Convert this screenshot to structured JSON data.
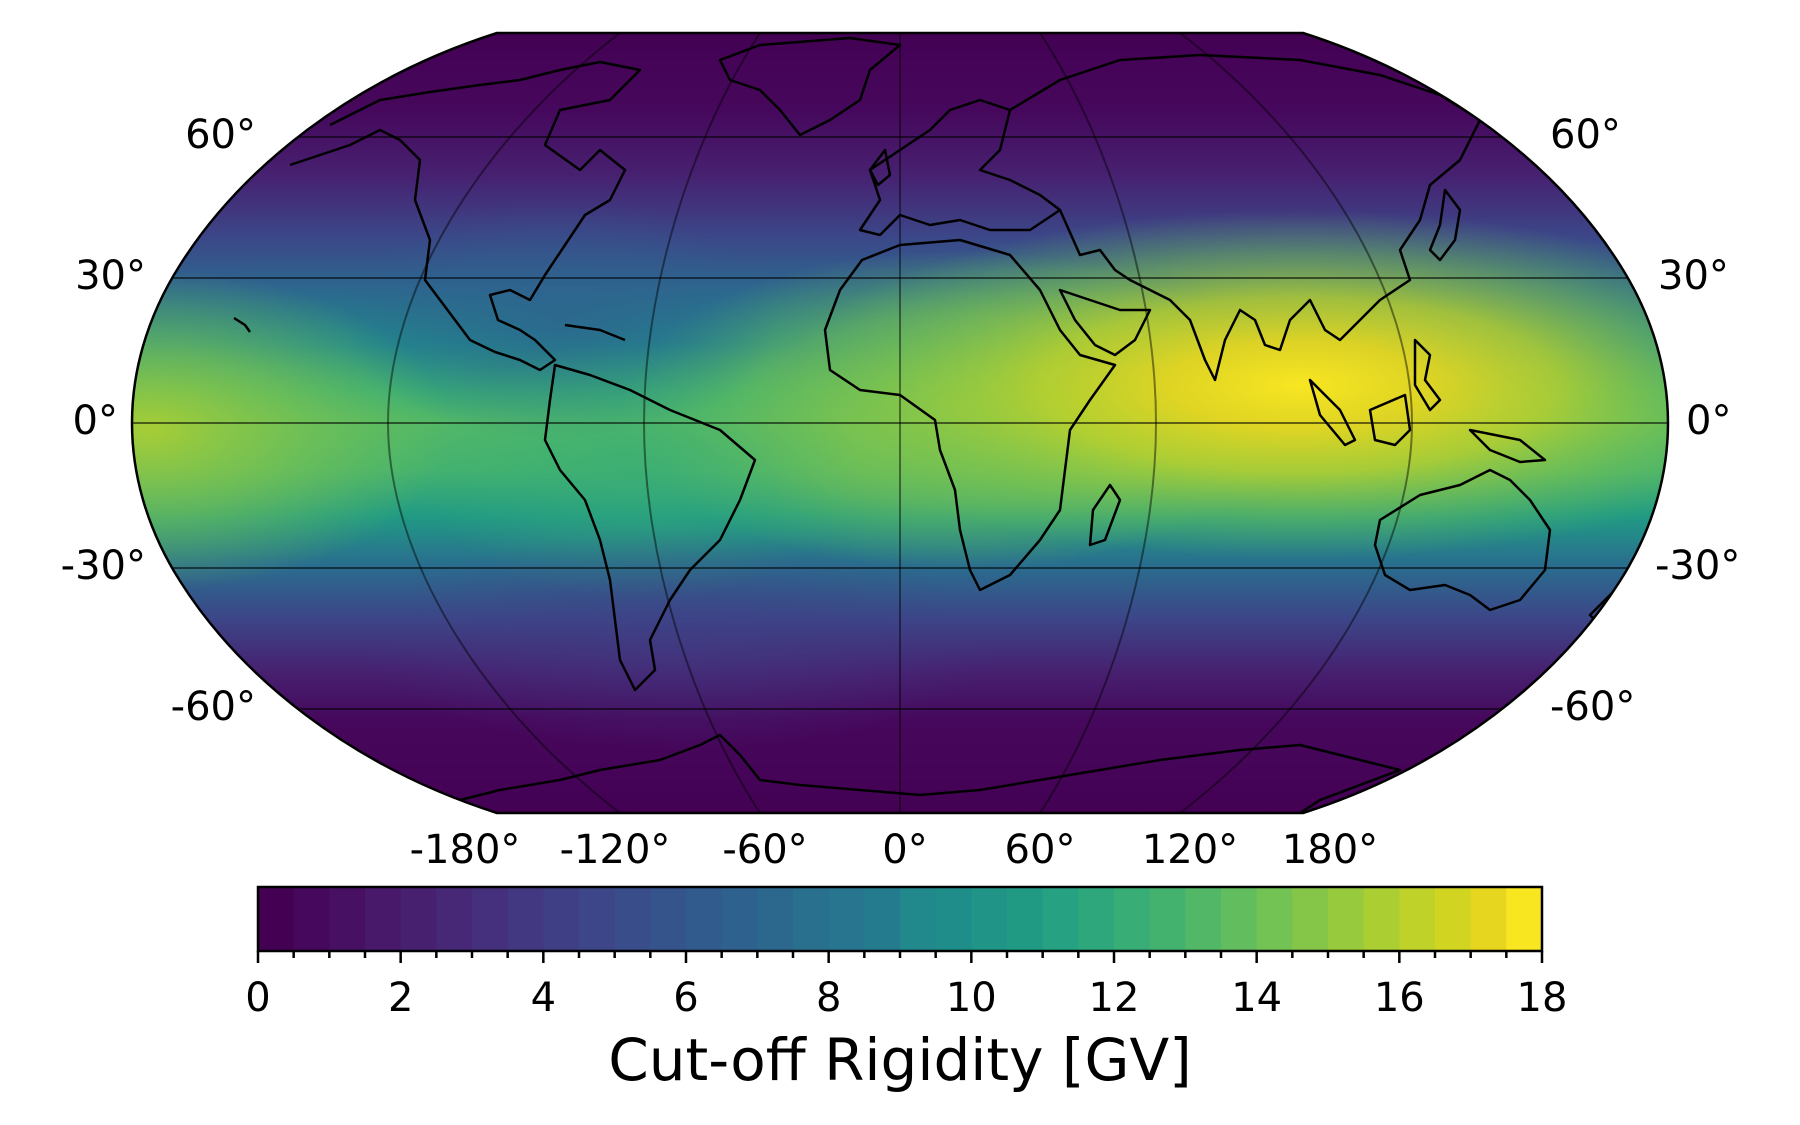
{
  "chart_data": {
    "type": "heatmap",
    "subtype": "filled-contour world map (Robinson projection)",
    "title": "",
    "colorbar_label": "Cut-off Rigidity [GV]",
    "colormap": "viridis",
    "value_range": [
      0,
      18
    ],
    "contour_step": 0.5,
    "colorbar_ticks": [
      "0",
      "2",
      "4",
      "6",
      "8",
      "10",
      "12",
      "14",
      "16",
      "18"
    ],
    "latitude_ticks": {
      "left": [
        "60°",
        "30°",
        "0°",
        "-30°",
        "-60°"
      ],
      "right": [
        "60°",
        "30°",
        "0°",
        "-30°",
        "-60°"
      ]
    },
    "longitude_ticks": [
      "-180°",
      "-120°",
      "-60°",
      "0°",
      "60°",
      "120°",
      "180°"
    ],
    "grid": true,
    "features": {
      "maximum": {
        "region": "Indian Ocean / Southeast Asia near equator",
        "approx_value": 17.5
      },
      "secondary_high": {
        "region": "Central Pacific near equator",
        "approx_value": 15
      },
      "minima": {
        "region": "Polar regions (Arctic & Antarctic)",
        "approx_value": 0.5
      },
      "south_atlantic": {
        "region": "South America / South Atlantic anomaly",
        "approx_value": 11
      }
    },
    "legend_position": "bottom colorbar (horizontal)"
  },
  "labels": {
    "colorbar_title": "Cut-off Rigidity [GV]"
  },
  "colors": {
    "viridis": [
      "#440154",
      "#46085c",
      "#471063",
      "#48186a",
      "#472070",
      "#462877",
      "#44307c",
      "#423881",
      "#3f3f85",
      "#3c4688",
      "#394d8a",
      "#35548c",
      "#325b8d",
      "#2f618e",
      "#2c688e",
      "#296f8e",
      "#27758e",
      "#247b8e",
      "#22818d",
      "#21888c",
      "#1f8e8a",
      "#1f9487",
      "#219a84",
      "#26a181",
      "#2ea77c",
      "#38ad76",
      "#44b26f",
      "#52b867",
      "#62bd5e",
      "#73c254",
      "#85c649",
      "#98ca3e",
      "#abce33",
      "#bed22a",
      "#d2d422",
      "#e6d620",
      "#f8e621"
    ]
  }
}
